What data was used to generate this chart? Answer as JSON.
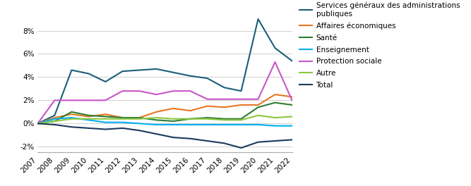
{
  "years": [
    2007,
    2008,
    2009,
    2010,
    2011,
    2012,
    2013,
    2014,
    2015,
    2016,
    2017,
    2018,
    2019,
    2020,
    2021,
    2022
  ],
  "series": [
    {
      "label": "Services généraux des administrations\npubliques",
      "color": "#1a5f7a",
      "values": [
        0.0,
        0.7,
        4.6,
        4.3,
        3.6,
        4.5,
        4.6,
        4.7,
        4.4,
        4.1,
        3.9,
        3.1,
        2.8,
        9.0,
        6.5,
        5.4
      ]
    },
    {
      "label": "Affaires économiques",
      "color": "#e87722",
      "values": [
        0.0,
        0.5,
        0.8,
        0.6,
        0.8,
        0.5,
        0.5,
        1.0,
        1.3,
        1.1,
        1.5,
        1.4,
        1.6,
        1.6,
        2.5,
        2.3
      ]
    },
    {
      "label": "Santé",
      "color": "#2e7d32",
      "values": [
        0.0,
        0.2,
        1.0,
        0.7,
        0.6,
        0.5,
        0.5,
        0.3,
        0.2,
        0.4,
        0.5,
        0.4,
        0.4,
        1.4,
        1.8,
        1.6
      ]
    },
    {
      "label": "Enseignement",
      "color": "#00aeef",
      "values": [
        0.0,
        0.4,
        0.5,
        0.3,
        0.1,
        0.1,
        0.0,
        -0.1,
        -0.1,
        -0.1,
        -0.1,
        -0.1,
        -0.1,
        -0.1,
        -0.2,
        -0.2
      ]
    },
    {
      "label": "Protection sociale",
      "color": "#c855c8",
      "values": [
        0.0,
        2.0,
        2.0,
        2.0,
        2.0,
        2.8,
        2.8,
        2.5,
        2.8,
        2.8,
        2.1,
        2.1,
        2.1,
        2.1,
        5.3,
        2.0
      ]
    },
    {
      "label": "Autre",
      "color": "#8dc63f",
      "values": [
        0.0,
        0.2,
        0.4,
        0.4,
        0.4,
        0.4,
        0.4,
        0.5,
        0.4,
        0.4,
        0.4,
        0.3,
        0.3,
        0.7,
        0.5,
        0.6
      ]
    },
    {
      "label": "Total",
      "color": "#1a3a5c",
      "values": [
        0.0,
        -0.1,
        -0.3,
        -0.4,
        -0.5,
        -0.4,
        -0.6,
        -0.9,
        -1.2,
        -1.3,
        -1.5,
        -1.7,
        -2.1,
        -1.6,
        -1.5,
        -1.4
      ]
    }
  ],
  "ylim": [
    -2.5,
    10.0
  ],
  "yticks": [
    -2,
    0,
    2,
    4,
    6,
    8
  ],
  "background_color": "#ffffff",
  "grid_color": "#d0d0d0",
  "linewidth": 1.5,
  "tick_fontsize": 7.5,
  "legend_fontsize": 7.5,
  "legend_labelspacing": 0.65,
  "legend_handlelength": 1.8
}
